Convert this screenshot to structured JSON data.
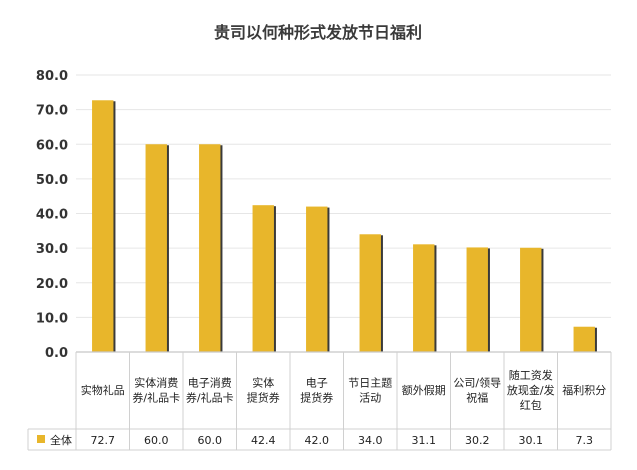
{
  "chart_data": {
    "type": "bar",
    "title": "贵司以何种形式发放节日福利",
    "categories": [
      [
        "实物礼品"
      ],
      [
        "实体消费",
        "券/礼品卡"
      ],
      [
        "电子消费",
        "券/礼品卡"
      ],
      [
        "实体",
        "提货券"
      ],
      [
        "电子",
        "提货券"
      ],
      [
        "节日主题",
        "活动"
      ],
      [
        "额外假期"
      ],
      [
        "公司/领导",
        "祝福"
      ],
      [
        "随工资发",
        "放现金/发",
        "红包"
      ],
      [
        "福利积分"
      ]
    ],
    "series": [
      {
        "name": "全体",
        "values": [
          72.7,
          60.0,
          60.0,
          42.4,
          42.0,
          34.0,
          31.1,
          30.2,
          30.1,
          7.3
        ],
        "value_labels": [
          "72.7",
          "60.0",
          "60.0",
          "42.4",
          "42.0",
          "34.0",
          "31.1",
          "30.2",
          "30.1",
          "7.3"
        ]
      }
    ],
    "ylim": [
      0,
      80
    ],
    "yticks": [
      "0.0",
      "10.0",
      "20.0",
      "30.0",
      "40.0",
      "50.0",
      "60.0",
      "70.0",
      "80.0"
    ],
    "grid": true,
    "legend": "data-table-left",
    "colors": {
      "bar": "#E8B62B",
      "bar_shadow": "#3a3a3a",
      "grid": "#e6e6e6",
      "axis": "#c8c8c8",
      "table_border": "#d0d0d0"
    }
  }
}
